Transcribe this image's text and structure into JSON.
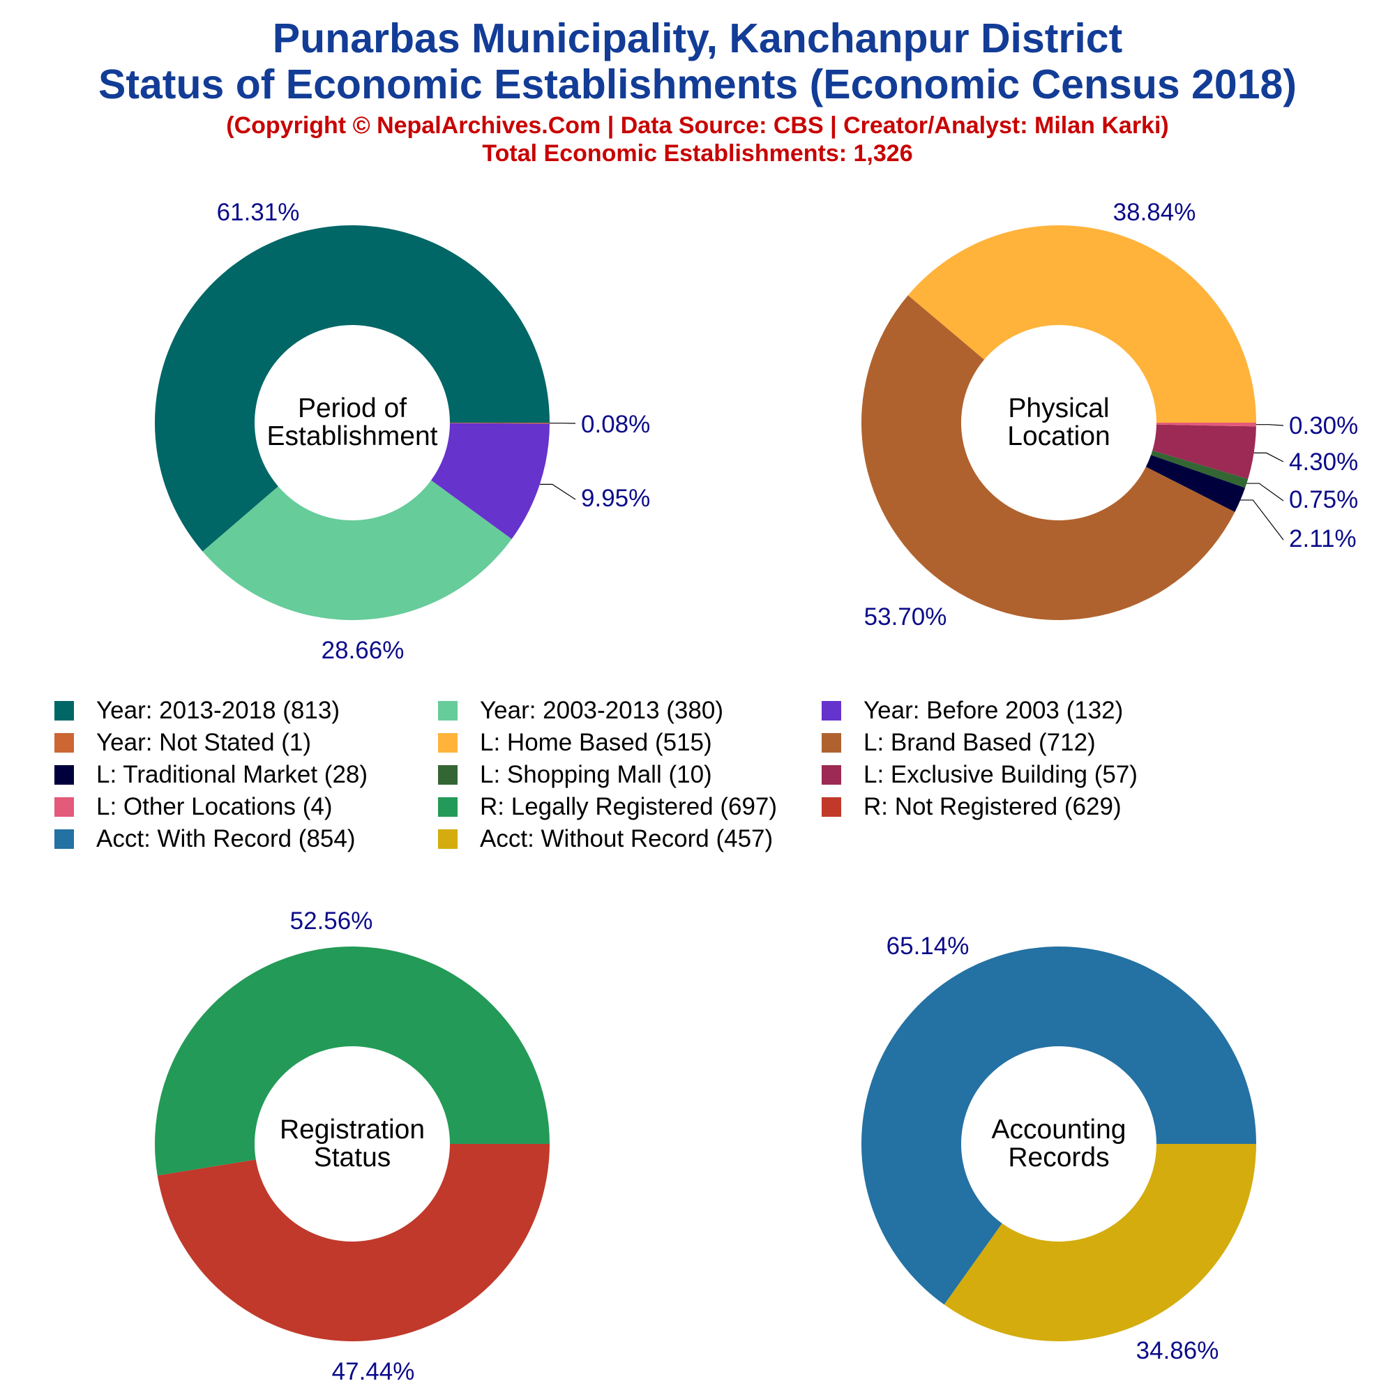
{
  "title_line1": "Punarbas Municipality, Kanchanpur District",
  "title_line2": "Status of Economic Establishments (Economic Census 2018)",
  "subtitle": "(Copyright © NepalArchives.Com | Data Source: CBS | Creator/Analyst: Milan Karki)",
  "total_line": "Total Economic Establishments: 1,326",
  "legend": [
    {
      "label": "Year: 2013-2018 (813)",
      "color": "#006666"
    },
    {
      "label": "Year: 2003-2013 (380)",
      "color": "#66cc99"
    },
    {
      "label": "Year: Before 2003 (132)",
      "color": "#6633cc"
    },
    {
      "label": "Year: Not Stated (1)",
      "color": "#cc6633"
    },
    {
      "label": "L: Home Based (515)",
      "color": "#ffb33b"
    },
    {
      "label": "L: Brand Based (712)",
      "color": "#b0622e"
    },
    {
      "label": "L: Traditional Market (28)",
      "color": "#00003d"
    },
    {
      "label": "L: Shopping Mall (10)",
      "color": "#336633"
    },
    {
      "label": "L: Exclusive Building (57)",
      "color": "#9c2a54"
    },
    {
      "label": "L: Other Locations (4)",
      "color": "#e35a7a"
    },
    {
      "label": "R: Legally Registered (697)",
      "color": "#239a57"
    },
    {
      "label": "R: Not Registered (629)",
      "color": "#c0392b"
    },
    {
      "label": "Acct: With Record (854)",
      "color": "#2471a3"
    },
    {
      "label": "Acct: Without Record (457)",
      "color": "#d4ac0d"
    }
  ],
  "chart_data": [
    {
      "type": "pie",
      "center_label": [
        "Period of",
        "Establishment"
      ],
      "slices": [
        {
          "name": "Year: 2013-2018",
          "value": 813,
          "label": "61.31%",
          "color": "#006666"
        },
        {
          "name": "Year: 2003-2013",
          "value": 380,
          "label": "28.66%",
          "color": "#66cc99"
        },
        {
          "name": "Year: Before 2003",
          "value": 132,
          "label": "9.95%",
          "color": "#6633cc"
        },
        {
          "name": "Year: Not Stated",
          "value": 1,
          "label": "0.08%",
          "color": "#cc6633"
        }
      ]
    },
    {
      "type": "pie",
      "center_label": [
        "Physical",
        "Location"
      ],
      "slices": [
        {
          "name": "L: Home Based",
          "value": 515,
          "label": "38.84%",
          "color": "#ffb33b"
        },
        {
          "name": "L: Brand Based",
          "value": 712,
          "label": "53.70%",
          "color": "#b0622e"
        },
        {
          "name": "L: Traditional Market",
          "value": 28,
          "label": "2.11%",
          "color": "#00003d"
        },
        {
          "name": "L: Shopping Mall",
          "value": 10,
          "label": "0.75%",
          "color": "#336633"
        },
        {
          "name": "L: Exclusive Building",
          "value": 57,
          "label": "4.30%",
          "color": "#9c2a54"
        },
        {
          "name": "L: Other Locations",
          "value": 4,
          "label": "0.30%",
          "color": "#e35a7a"
        }
      ]
    },
    {
      "type": "pie",
      "center_label": [
        "Registration",
        "Status"
      ],
      "slices": [
        {
          "name": "R: Legally Registered",
          "value": 697,
          "label": "52.56%",
          "color": "#239a57"
        },
        {
          "name": "R: Not Registered",
          "value": 629,
          "label": "47.44%",
          "color": "#c0392b"
        }
      ]
    },
    {
      "type": "pie",
      "center_label": [
        "Accounting",
        "Records"
      ],
      "slices": [
        {
          "name": "Acct: With Record",
          "value": 854,
          "label": "65.14%",
          "color": "#2471a3"
        },
        {
          "name": "Acct: Without Record",
          "value": 457,
          "label": "34.86%",
          "color": "#d4ac0d"
        }
      ]
    }
  ]
}
